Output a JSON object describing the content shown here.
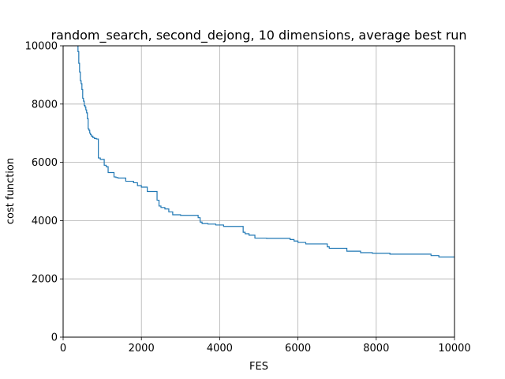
{
  "chart_data": {
    "type": "line",
    "title": "random_search, second_dejong, 10 dimensions, average best run",
    "xlabel": "FES",
    "ylabel": "cost function",
    "xlim": [
      0,
      10000
    ],
    "ylim": [
      0,
      10000
    ],
    "xticks": [
      0,
      2000,
      4000,
      6000,
      8000,
      10000
    ],
    "yticks": [
      0,
      2000,
      4000,
      6000,
      8000,
      10000
    ],
    "xtick_labels": [
      "0",
      "2000",
      "4000",
      "6000",
      "8000",
      "10000"
    ],
    "ytick_labels": [
      "0",
      "2000",
      "4000",
      "6000",
      "8000",
      "10000"
    ],
    "grid": true,
    "line_color": "#1f77b4",
    "series": [
      {
        "step": true,
        "x": [
          0,
          370,
          380,
          400,
          420,
          440,
          460,
          480,
          500,
          520,
          540,
          560,
          580,
          600,
          620,
          640,
          660,
          680,
          700,
          720,
          760,
          800,
          850,
          900,
          950,
          1050,
          1100,
          1150,
          1300,
          1350,
          1400,
          1600,
          1800,
          1900,
          2000,
          2150,
          2400,
          2450,
          2500,
          2600,
          2700,
          2800,
          3000,
          3450,
          3500,
          3550,
          3700,
          3900,
          4100,
          4600,
          4650,
          4750,
          4900,
          5200,
          5800,
          5900,
          6000,
          6200,
          6750,
          6800,
          7250,
          7600,
          7900,
          8350,
          9400,
          9600,
          10000
        ],
        "y": [
          10500,
          10000,
          9800,
          9400,
          9100,
          8800,
          8700,
          8500,
          8200,
          8100,
          7950,
          7900,
          7800,
          7700,
          7500,
          7150,
          7100,
          7000,
          6950,
          6900,
          6850,
          6820,
          6800,
          6150,
          6100,
          5900,
          5850,
          5650,
          5500,
          5480,
          5460,
          5350,
          5300,
          5200,
          5150,
          5000,
          4700,
          4500,
          4450,
          4400,
          4300,
          4200,
          4180,
          4100,
          3950,
          3900,
          3880,
          3850,
          3800,
          3600,
          3550,
          3500,
          3400,
          3390,
          3350,
          3300,
          3250,
          3200,
          3100,
          3050,
          2950,
          2900,
          2880,
          2850,
          2800,
          2750,
          2750
        ]
      }
    ]
  }
}
